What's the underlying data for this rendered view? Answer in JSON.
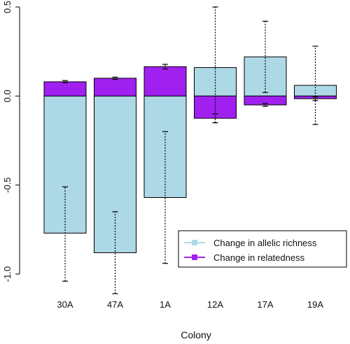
{
  "chart_data": {
    "type": "bar",
    "xlabel": "Colony",
    "ylabel": "",
    "ylim": [
      -1.0,
      0.5
    ],
    "yticks": [
      -1.0,
      -0.5,
      0.0,
      0.5
    ],
    "ytick_labels": [
      "-1.0",
      "-0.5",
      "0.0",
      "0.5"
    ],
    "categories": [
      "30A",
      "47A",
      "1A",
      "12A",
      "17A",
      "19A"
    ],
    "legend_position": "bottom-right",
    "grid": false,
    "series": [
      {
        "name": "Change in allelic richness",
        "color": "#add8e6",
        "values": [
          -0.77,
          -0.88,
          -0.57,
          0.16,
          0.22,
          0.06
        ],
        "error_low": [
          -1.04,
          -1.11,
          -0.94,
          -0.15,
          0.02,
          -0.16
        ],
        "error_high": [
          -0.51,
          -0.65,
          -0.2,
          0.5,
          0.42,
          0.28
        ]
      },
      {
        "name": "Change in relatedness",
        "color": "#a020f0",
        "values": [
          0.08,
          0.1,
          0.165,
          -0.125,
          -0.05,
          -0.015
        ],
        "error_low": [
          0.075,
          0.093,
          0.152,
          -0.15,
          -0.058,
          -0.025
        ],
        "error_high": [
          0.087,
          0.106,
          0.178,
          -0.1,
          -0.042,
          -0.005
        ]
      }
    ]
  }
}
